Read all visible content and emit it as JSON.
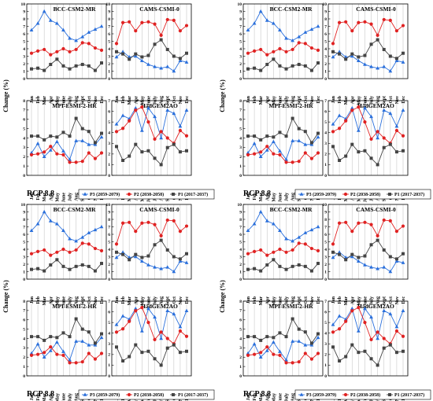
{
  "ylabel": "Change (%)",
  "scenario_label": "RCP 8.8",
  "months": [
    "Jan",
    "Feb",
    "Mar",
    "Apr",
    "May",
    "June",
    "July",
    "Aug",
    "Sept",
    "Oct",
    "Nov",
    "Dec"
  ],
  "yticks": [
    0,
    1,
    2,
    3,
    4,
    5,
    6,
    7,
    8,
    9,
    10
  ],
  "colors": {
    "P3": "#2a6fdb",
    "P2": "#e02222",
    "P1": "#444444"
  },
  "legend": {
    "P3": "P3 (2059-2079)",
    "P2": "P2 (2038-2058)",
    "P1": "P1 (2017-2037)"
  },
  "chart_data": [
    {
      "type": "line",
      "title": "BCC-CSM2-MR",
      "ylim": [
        0,
        10
      ],
      "categories": [
        "Jan",
        "Feb",
        "Mar",
        "Apr",
        "May",
        "June",
        "July",
        "Aug",
        "Sept",
        "Oct",
        "Nov",
        "Dec"
      ],
      "series": [
        {
          "name": "P3 (2059-2079)",
          "values": [
            6.5,
            7.4,
            9.0,
            7.8,
            7.4,
            6.5,
            5.4,
            5.1,
            5.6,
            6.2,
            6.6,
            7.0
          ]
        },
        {
          "name": "P2 (2038-2058)",
          "values": [
            3.4,
            3.7,
            3.9,
            3.2,
            3.6,
            4.0,
            3.6,
            3.9,
            4.8,
            4.7,
            4.1,
            3.8
          ]
        },
        {
          "name": "P1 (2017-2037)",
          "values": [
            1.3,
            1.4,
            1.1,
            1.9,
            2.6,
            1.7,
            1.3,
            1.7,
            1.9,
            1.7,
            1.1,
            2.1
          ]
        }
      ]
    },
    {
      "type": "line",
      "title": "CAMS-CSMI-0",
      "ylim": [
        0,
        10
      ],
      "categories": [
        "Jan",
        "Feb",
        "Mar",
        "Apr",
        "May",
        "June",
        "July",
        "Aug",
        "Sept",
        "Oct",
        "Nov",
        "Dec"
      ],
      "series": [
        {
          "name": "P3 (2059-2079)",
          "values": [
            2.9,
            3.6,
            2.9,
            3.0,
            2.4,
            1.9,
            1.6,
            1.4,
            1.6,
            1.0,
            2.4,
            2.2
          ]
        },
        {
          "name": "P2 (2038-2058)",
          "values": [
            4.7,
            7.5,
            7.6,
            6.4,
            7.5,
            7.6,
            7.3,
            5.8,
            7.9,
            7.8,
            6.4,
            7.1
          ]
        },
        {
          "name": "P1 (2017-2037)",
          "values": [
            3.6,
            3.3,
            2.6,
            3.3,
            2.9,
            3.1,
            4.6,
            5.2,
            3.9,
            3.0,
            2.7,
            3.4
          ]
        }
      ]
    },
    {
      "type": "line",
      "title": "MPI-ESMI-2-HR",
      "ylim": [
        0,
        8
      ],
      "categories": [
        "Jan",
        "Feb",
        "Mar",
        "Apr",
        "May",
        "June",
        "July",
        "Aug",
        "Sept",
        "Oct",
        "Nov",
        "Dec"
      ],
      "series": [
        {
          "name": "P3 (2059-2079)",
          "values": [
            2.4,
            3.4,
            2.0,
            2.7,
            3.6,
            2.6,
            1.7,
            3.7,
            3.7,
            3.3,
            3.3,
            4.1
          ]
        },
        {
          "name": "P2 (2038-2058)",
          "values": [
            2.2,
            2.3,
            2.5,
            3.1,
            2.3,
            2.2,
            1.4,
            1.4,
            1.5,
            2.4,
            1.8,
            2.4
          ]
        },
        {
          "name": "P1 (2017-2037)",
          "values": [
            4.2,
            4.2,
            3.8,
            4.2,
            4.1,
            4.6,
            4.2,
            6.1,
            5.0,
            4.7,
            3.5,
            4.5
          ]
        }
      ]
    },
    {
      "type": "line",
      "title": "HadGEM2AO",
      "ylim": [
        0,
        7
      ],
      "categories": [
        "Jan",
        "Feb",
        "Mar",
        "Apr",
        "May",
        "June",
        "July",
        "Aug",
        "Sept",
        "Oct",
        "Nov",
        "Dec"
      ],
      "series": [
        {
          "name": "P3 (2059-2079)",
          "values": [
            4.8,
            5.6,
            5.3,
            6.3,
            4.2,
            6.3,
            5.5,
            3.5,
            6.1,
            5.8,
            4.6,
            6.1
          ]
        },
        {
          "name": "P2 (2038-2058)",
          "values": [
            4.1,
            4.4,
            5.1,
            6.1,
            6.4,
            5.0,
            3.4,
            4.1,
            3.5,
            3.0,
            4.2,
            3.7
          ]
        },
        {
          "name": "P1 (2017-2037)",
          "values": [
            2.7,
            1.4,
            1.8,
            2.9,
            2.2,
            2.3,
            1.6,
            1.0,
            2.6,
            2.9,
            2.2,
            2.3
          ]
        }
      ]
    }
  ]
}
